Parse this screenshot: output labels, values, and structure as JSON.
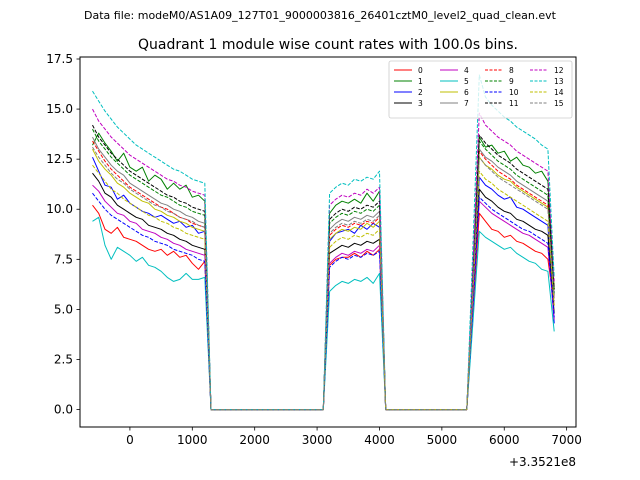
{
  "suptitle": "Data file: modeM0/AS1A09_127T01_9000003816_26401cztM0_level2_quad_clean.evt",
  "chart_data": {
    "type": "line",
    "title": "Quadrant 1 module wise count rates with 100.0s bins.",
    "xlabel": "",
    "ylabel": "",
    "x_offset_label": "+3.3521e8",
    "xlim": [
      -800,
      7150
    ],
    "ylim": [
      -0.87,
      17.6
    ],
    "xticks": [
      0,
      1000,
      2000,
      3000,
      4000,
      5000,
      6000,
      7000
    ],
    "xtick_labels": [
      "0",
      "1000",
      "2000",
      "3000",
      "4000",
      "5000",
      "6000",
      "7000"
    ],
    "yticks": [
      0.0,
      2.5,
      5.0,
      7.5,
      10.0,
      12.5,
      15.0,
      17.5
    ],
    "ytick_labels": [
      "0.0",
      "2.5",
      "5.0",
      "7.5",
      "10.0",
      "12.5",
      "15.0",
      "17.5"
    ],
    "grid": false,
    "legend_location": "top-right",
    "legend_columns": 4,
    "segments": [
      {
        "name": "orbit-1",
        "x_start": -600,
        "x_step": 100,
        "n": 19
      },
      {
        "name": "orbit-2",
        "x_start": 3200,
        "x_step": 100,
        "n": 9
      },
      {
        "name": "orbit-3",
        "x_start": 5600,
        "x_step": 100,
        "n": 12
      }
    ],
    "gaps": [
      {
        "from": 1300,
        "to": 1400
      },
      {
        "from": 3000,
        "to": 3100
      },
      {
        "from": 4100,
        "to": 4200
      },
      {
        "from": 5300,
        "to": 5400
      },
      {
        "from": 6800,
        "to": 6800
      }
    ],
    "gap_level": 0.0,
    "series": [
      {
        "name": "0",
        "color": "#ff0000",
        "dash": "solid",
        "segments": [
          [
            10.2,
            9.8,
            9.0,
            8.8,
            9.1,
            8.6,
            8.5,
            8.4,
            8.2,
            8.0,
            7.9,
            8.0,
            7.7,
            7.9,
            7.6,
            7.7,
            7.3,
            7.0,
            7.4
          ],
          [
            7.2,
            7.5,
            7.6,
            7.6,
            7.8,
            7.6,
            7.9,
            7.7,
            8.0
          ],
          [
            9.8,
            9.4,
            9.0,
            8.9,
            8.6,
            8.7,
            8.4,
            8.3,
            8.1,
            7.9,
            7.8,
            7.5
          ]
        ],
        "end": 5.2
      },
      {
        "name": "1",
        "color": "#008000",
        "dash": "solid",
        "segments": [
          [
            13.2,
            13.8,
            13.3,
            12.9,
            12.4,
            12.8,
            12.1,
            11.9,
            12.1,
            11.4,
            11.7,
            11.5,
            11.0,
            11.3,
            11.0,
            11.2,
            10.6,
            10.7,
            10.4
          ],
          [
            9.8,
            10.2,
            10.4,
            10.3,
            10.5,
            10.3,
            10.8,
            10.4,
            10.9
          ],
          [
            13.6,
            13.1,
            13.2,
            12.8,
            12.9,
            12.4,
            12.6,
            12.2,
            12.1,
            11.8,
            11.9,
            11.4
          ]
        ],
        "end": 6.0
      },
      {
        "name": "2",
        "color": "#0000ff",
        "dash": "solid",
        "segments": [
          [
            12.6,
            11.9,
            11.2,
            11.1,
            10.5,
            10.7,
            10.3,
            10.1,
            9.9,
            9.8,
            9.6,
            9.7,
            9.5,
            9.3,
            9.4,
            9.1,
            9.2,
            8.8,
            8.9
          ],
          [
            8.4,
            8.8,
            8.9,
            9.0,
            8.8,
            9.2,
            9.0,
            9.3,
            9.1
          ],
          [
            11.6,
            11.2,
            11.0,
            10.7,
            10.5,
            10.6,
            10.1,
            10.0,
            9.8,
            9.6,
            9.4,
            9.2
          ]
        ],
        "end": 4.3
      },
      {
        "name": "3",
        "color": "#000000",
        "dash": "solid",
        "segments": [
          [
            11.8,
            11.4,
            10.8,
            10.6,
            10.2,
            10.0,
            9.8,
            9.6,
            9.5,
            9.2,
            9.1,
            9.0,
            8.8,
            8.7,
            8.5,
            8.4,
            8.2,
            8.1,
            8.0
          ],
          [
            7.8,
            8.0,
            8.2,
            8.1,
            8.3,
            8.2,
            8.4,
            8.3,
            8.5
          ],
          [
            11.0,
            10.6,
            10.4,
            10.1,
            9.9,
            9.8,
            9.5,
            9.4,
            9.2,
            9.0,
            8.9,
            8.7
          ]
        ],
        "end": 4.8
      },
      {
        "name": "4",
        "color": "#c000c0",
        "dash": "solid",
        "segments": [
          [
            11.2,
            10.9,
            10.4,
            10.1,
            9.8,
            9.7,
            9.4,
            9.3,
            9.0,
            8.9,
            8.8,
            8.6,
            8.5,
            8.3,
            8.2,
            8.0,
            7.9,
            7.8,
            7.7
          ],
          [
            7.3,
            7.6,
            7.8,
            7.7,
            7.9,
            7.8,
            8.0,
            7.9,
            8.2
          ],
          [
            10.4,
            10.1,
            9.8,
            9.6,
            9.4,
            9.2,
            9.0,
            8.8,
            8.7,
            8.5,
            8.3,
            8.1
          ]
        ],
        "end": 4.5
      },
      {
        "name": "5",
        "color": "#00bfbf",
        "dash": "solid",
        "segments": [
          [
            9.4,
            9.6,
            8.2,
            7.5,
            8.1,
            7.9,
            7.7,
            7.4,
            7.6,
            7.2,
            7.1,
            6.9,
            6.6,
            6.4,
            6.5,
            6.8,
            6.5,
            6.5,
            6.6
          ],
          [
            5.9,
            6.2,
            6.4,
            6.3,
            6.5,
            6.4,
            6.6,
            6.3,
            6.8
          ],
          [
            8.9,
            8.6,
            8.4,
            8.2,
            8.0,
            8.1,
            7.8,
            7.6,
            7.4,
            7.3,
            7.0,
            6.9
          ]
        ],
        "end": 3.9
      },
      {
        "name": "6",
        "color": "#bfbf00",
        "dash": "solid",
        "segments": [
          [
            13.0,
            12.4,
            12.0,
            11.7,
            11.3,
            11.1,
            10.8,
            10.6,
            10.4,
            10.3,
            10.0,
            9.9,
            9.7,
            9.6,
            9.4,
            9.3,
            9.1,
            9.0,
            8.9
          ],
          [
            8.5,
            8.8,
            9.0,
            8.9,
            9.1,
            9.0,
            9.3,
            9.1,
            9.4
          ],
          [
            12.6,
            12.2,
            12.0,
            11.7,
            11.5,
            11.4,
            11.1,
            10.9,
            10.7,
            10.5,
            10.3,
            10.1
          ]
        ],
        "end": 6.1
      },
      {
        "name": "7",
        "color": "#808080",
        "dash": "solid",
        "segments": [
          [
            13.6,
            13.0,
            12.6,
            12.2,
            11.9,
            11.7,
            11.3,
            11.1,
            10.9,
            10.7,
            10.5,
            10.3,
            10.2,
            10.0,
            9.9,
            9.7,
            9.6,
            9.4,
            9.3
          ],
          [
            9.0,
            9.3,
            9.5,
            9.4,
            9.6,
            9.5,
            9.7,
            9.6,
            9.9
          ],
          [
            13.0,
            12.6,
            12.4,
            12.1,
            11.9,
            11.7,
            11.4,
            11.2,
            11.0,
            10.8,
            10.6,
            10.4
          ]
        ],
        "end": 5.7
      },
      {
        "name": "8",
        "color": "#ff0000",
        "dash": "dashed",
        "segments": [
          [
            13.4,
            12.9,
            12.4,
            12.0,
            11.7,
            11.4,
            11.1,
            10.9,
            10.7,
            10.5,
            10.3,
            10.1,
            10.0,
            9.8,
            9.6,
            9.5,
            9.3,
            9.2,
            9.1
          ],
          [
            8.7,
            9.0,
            9.2,
            9.1,
            9.3,
            9.2,
            9.4,
            9.3,
            9.6
          ],
          [
            12.9,
            12.5,
            12.2,
            11.9,
            11.7,
            11.5,
            11.2,
            11.0,
            10.8,
            10.6,
            10.4,
            10.2
          ]
        ],
        "end": 5.5
      },
      {
        "name": "9",
        "color": "#008000",
        "dash": "dashed",
        "segments": [
          [
            14.0,
            13.4,
            13.0,
            12.6,
            12.3,
            12.0,
            11.7,
            11.5,
            11.3,
            11.1,
            10.9,
            10.7,
            10.6,
            10.4,
            10.2,
            10.1,
            9.9,
            9.8,
            9.7
          ],
          [
            9.3,
            9.6,
            9.8,
            9.7,
            9.9,
            9.8,
            10.0,
            9.9,
            10.2
          ],
          [
            13.4,
            13.0,
            12.7,
            12.4,
            12.2,
            12.0,
            11.7,
            11.5,
            11.3,
            11.1,
            10.9,
            10.7
          ]
        ],
        "end": 5.8
      },
      {
        "name": "10",
        "color": "#0000ff",
        "dash": "dashed",
        "segments": [
          [
            10.8,
            10.4,
            10.0,
            9.7,
            9.5,
            9.3,
            9.1,
            8.9,
            8.7,
            8.6,
            8.4,
            8.3,
            8.2,
            8.0,
            7.9,
            7.8,
            7.7,
            7.5,
            7.4
          ],
          [
            7.1,
            7.4,
            7.6,
            7.5,
            7.7,
            7.6,
            7.8,
            7.7,
            7.9
          ],
          [
            10.6,
            10.3,
            10.0,
            9.8,
            9.6,
            9.4,
            9.2,
            9.0,
            8.9,
            8.7,
            8.5,
            8.3
          ]
        ],
        "end": 4.6
      },
      {
        "name": "11",
        "color": "#000000",
        "dash": "dashed",
        "segments": [
          [
            14.2,
            13.6,
            13.2,
            12.8,
            12.5,
            12.2,
            11.9,
            11.7,
            11.5,
            11.3,
            11.1,
            10.9,
            10.7,
            10.6,
            10.4,
            10.3,
            10.1,
            10.0,
            9.9
          ],
          [
            9.5,
            9.8,
            10.0,
            9.9,
            10.1,
            10.0,
            10.2,
            10.1,
            10.4
          ],
          [
            13.7,
            13.3,
            13.0,
            12.7,
            12.5,
            12.3,
            12.0,
            11.8,
            11.6,
            11.4,
            11.2,
            11.0
          ]
        ],
        "end": 6.0
      },
      {
        "name": "12",
        "color": "#c000c0",
        "dash": "dashed",
        "segments": [
          [
            15.0,
            14.4,
            14.0,
            13.6,
            13.3,
            13.0,
            12.7,
            12.5,
            12.3,
            12.1,
            11.9,
            11.7,
            11.5,
            11.4,
            11.2,
            11.1,
            10.9,
            10.8,
            10.7
          ],
          [
            10.2,
            10.5,
            10.7,
            10.6,
            10.8,
            10.7,
            11.0,
            10.8,
            11.1
          ],
          [
            14.8,
            14.2,
            13.9,
            13.6,
            13.4,
            13.2,
            12.9,
            12.7,
            12.5,
            12.3,
            12.1,
            11.9
          ]
        ],
        "end": 6.4
      },
      {
        "name": "13",
        "color": "#00bfbf",
        "dash": "dashed",
        "segments": [
          [
            15.9,
            15.4,
            14.9,
            14.5,
            14.1,
            13.8,
            13.5,
            13.2,
            13.0,
            12.8,
            12.6,
            12.4,
            12.2,
            12.0,
            11.9,
            11.7,
            11.5,
            11.4,
            11.3
          ],
          [
            10.8,
            11.1,
            11.3,
            11.2,
            11.5,
            11.4,
            11.6,
            11.5,
            11.9
          ],
          [
            16.7,
            15.6,
            15.2,
            14.9,
            14.6,
            14.4,
            14.1,
            13.9,
            13.7,
            13.5,
            13.2,
            13.0
          ]
        ],
        "end": 6.6
      },
      {
        "name": "14",
        "color": "#bfbf00",
        "dash": "dashed",
        "segments": [
          [
            12.2,
            11.8,
            11.4,
            11.0,
            10.8,
            10.5,
            10.3,
            10.1,
            9.9,
            9.7,
            9.6,
            9.4,
            9.3,
            9.1,
            9.0,
            8.8,
            8.7,
            8.6,
            8.5
          ],
          [
            8.1,
            8.4,
            8.6,
            8.5,
            8.7,
            8.6,
            8.8,
            8.7,
            9.0
          ],
          [
            11.9,
            11.5,
            11.3,
            11.0,
            10.8,
            10.6,
            10.4,
            10.2,
            10.0,
            9.8,
            9.6,
            9.4
          ]
        ],
        "end": 5.2
      },
      {
        "name": "15",
        "color": "#808080",
        "dash": "dashed",
        "segments": [
          [
            13.1,
            12.6,
            12.2,
            11.8,
            11.5,
            11.3,
            11.0,
            10.8,
            10.6,
            10.4,
            10.2,
            10.1,
            9.9,
            9.8,
            9.6,
            9.5,
            9.4,
            9.2,
            9.1
          ],
          [
            8.8,
            9.1,
            9.3,
            9.2,
            9.4,
            9.3,
            9.5,
            9.4,
            9.7
          ],
          [
            12.6,
            12.2,
            11.9,
            11.6,
            11.4,
            11.2,
            11.0,
            10.8,
            10.6,
            10.4,
            10.2,
            10.0
          ]
        ],
        "end": 5.4
      }
    ]
  }
}
